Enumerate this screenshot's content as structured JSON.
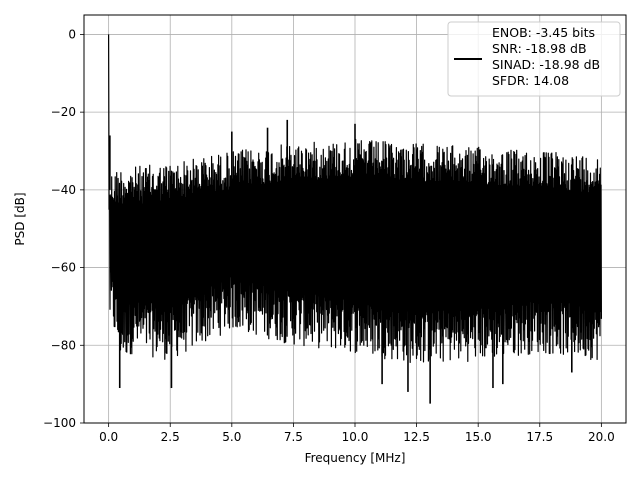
{
  "chart_data": {
    "type": "line",
    "title": "",
    "xlabel": "Frequency [MHz]",
    "ylabel": "PSD [dB]",
    "xlim": [
      -1.0,
      21.0
    ],
    "ylim": [
      -100,
      5
    ],
    "xticks": [
      0.0,
      2.5,
      5.0,
      7.5,
      10.0,
      12.5,
      15.0,
      17.5,
      20.0
    ],
    "xtick_labels": [
      "0.0",
      "2.5",
      "5.0",
      "7.5",
      "10.0",
      "12.5",
      "15.0",
      "17.5",
      "20.0"
    ],
    "yticks": [
      0,
      -20,
      -40,
      -60,
      -80,
      -100
    ],
    "ytick_labels": [
      "0",
      "−20",
      "−40",
      "−60",
      "−80",
      "−100"
    ],
    "grid": true,
    "series": [
      {
        "name": "ENOB: -3.45 bits\nSNR: -18.98 dB\nSINAD: -18.98 dB\nSFDR: 14.08",
        "color": "#000000",
        "x_range": [
          0.0,
          20.0
        ],
        "dc_peak": {
          "x": 0.0,
          "y": 0.0
        },
        "noise_floor_median_db": -49,
        "upper_envelope": [
          [
            0.1,
            -35
          ],
          [
            0.5,
            -34
          ],
          [
            1.0,
            -34
          ],
          [
            2.5,
            -33
          ],
          [
            5.0,
            -30
          ],
          [
            7.5,
            -28
          ],
          [
            10.0,
            -27
          ],
          [
            12.5,
            -28
          ],
          [
            15.0,
            -29
          ],
          [
            17.5,
            -30
          ],
          [
            20.0,
            -31
          ]
        ],
        "lower_envelope": [
          [
            0.1,
            -75
          ],
          [
            0.5,
            -84
          ],
          [
            1.0,
            -82
          ],
          [
            2.5,
            -84
          ],
          [
            5.0,
            -76
          ],
          [
            7.5,
            -80
          ],
          [
            10.0,
            -82
          ],
          [
            12.5,
            -85
          ],
          [
            15.0,
            -84
          ],
          [
            17.5,
            -82
          ],
          [
            20.0,
            -84
          ]
        ],
        "spikes_up": [
          [
            0.05,
            -26
          ],
          [
            6.45,
            -24
          ],
          [
            7.25,
            -22
          ],
          [
            10.0,
            -23
          ],
          [
            5.0,
            -25
          ]
        ],
        "spikes_down": [
          [
            0.45,
            -91
          ],
          [
            2.55,
            -91
          ],
          [
            11.1,
            -90
          ],
          [
            12.15,
            -92
          ],
          [
            13.05,
            -95
          ],
          [
            15.6,
            -91
          ],
          [
            16.0,
            -90
          ],
          [
            18.8,
            -87
          ]
        ]
      }
    ],
    "legend": {
      "position": "top-right",
      "lines": [
        "ENOB: -3.45 bits",
        "SNR: -18.98 dB",
        "SINAD: -18.98 dB",
        "SFDR: 14.08"
      ]
    }
  }
}
